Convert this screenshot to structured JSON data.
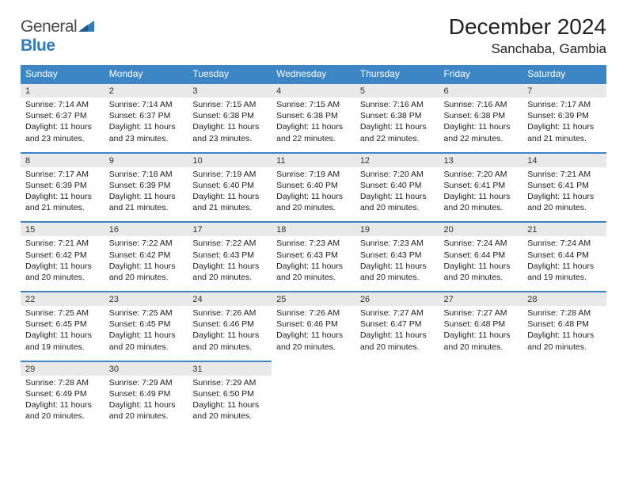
{
  "brand": {
    "text_gray": "General",
    "text_blue": "Blue"
  },
  "title": "December 2024",
  "location": "Sanchaba, Gambia",
  "colors": {
    "header_bg": "#3d86c6",
    "header_text": "#ffffff",
    "date_bg": "#e9e9e9",
    "divider": "#3d86c6",
    "brand_blue": "#2f7bbf",
    "text": "#222222",
    "background": "#ffffff"
  },
  "typography": {
    "title_fontsize": 28,
    "location_fontsize": 17,
    "dow_fontsize": 12,
    "cell_fontsize": 10.5
  },
  "dow": [
    "Sunday",
    "Monday",
    "Tuesday",
    "Wednesday",
    "Thursday",
    "Friday",
    "Saturday"
  ],
  "weeks": [
    [
      {
        "d": "1",
        "sr": "7:14 AM",
        "ss": "6:37 PM",
        "dl": "11 hours and 23 minutes."
      },
      {
        "d": "2",
        "sr": "7:14 AM",
        "ss": "6:37 PM",
        "dl": "11 hours and 23 minutes."
      },
      {
        "d": "3",
        "sr": "7:15 AM",
        "ss": "6:38 PM",
        "dl": "11 hours and 23 minutes."
      },
      {
        "d": "4",
        "sr": "7:15 AM",
        "ss": "6:38 PM",
        "dl": "11 hours and 22 minutes."
      },
      {
        "d": "5",
        "sr": "7:16 AM",
        "ss": "6:38 PM",
        "dl": "11 hours and 22 minutes."
      },
      {
        "d": "6",
        "sr": "7:16 AM",
        "ss": "6:38 PM",
        "dl": "11 hours and 22 minutes."
      },
      {
        "d": "7",
        "sr": "7:17 AM",
        "ss": "6:39 PM",
        "dl": "11 hours and 21 minutes."
      }
    ],
    [
      {
        "d": "8",
        "sr": "7:17 AM",
        "ss": "6:39 PM",
        "dl": "11 hours and 21 minutes."
      },
      {
        "d": "9",
        "sr": "7:18 AM",
        "ss": "6:39 PM",
        "dl": "11 hours and 21 minutes."
      },
      {
        "d": "10",
        "sr": "7:19 AM",
        "ss": "6:40 PM",
        "dl": "11 hours and 21 minutes."
      },
      {
        "d": "11",
        "sr": "7:19 AM",
        "ss": "6:40 PM",
        "dl": "11 hours and 20 minutes."
      },
      {
        "d": "12",
        "sr": "7:20 AM",
        "ss": "6:40 PM",
        "dl": "11 hours and 20 minutes."
      },
      {
        "d": "13",
        "sr": "7:20 AM",
        "ss": "6:41 PM",
        "dl": "11 hours and 20 minutes."
      },
      {
        "d": "14",
        "sr": "7:21 AM",
        "ss": "6:41 PM",
        "dl": "11 hours and 20 minutes."
      }
    ],
    [
      {
        "d": "15",
        "sr": "7:21 AM",
        "ss": "6:42 PM",
        "dl": "11 hours and 20 minutes."
      },
      {
        "d": "16",
        "sr": "7:22 AM",
        "ss": "6:42 PM",
        "dl": "11 hours and 20 minutes."
      },
      {
        "d": "17",
        "sr": "7:22 AM",
        "ss": "6:43 PM",
        "dl": "11 hours and 20 minutes."
      },
      {
        "d": "18",
        "sr": "7:23 AM",
        "ss": "6:43 PM",
        "dl": "11 hours and 20 minutes."
      },
      {
        "d": "19",
        "sr": "7:23 AM",
        "ss": "6:43 PM",
        "dl": "11 hours and 20 minutes."
      },
      {
        "d": "20",
        "sr": "7:24 AM",
        "ss": "6:44 PM",
        "dl": "11 hours and 20 minutes."
      },
      {
        "d": "21",
        "sr": "7:24 AM",
        "ss": "6:44 PM",
        "dl": "11 hours and 19 minutes."
      }
    ],
    [
      {
        "d": "22",
        "sr": "7:25 AM",
        "ss": "6:45 PM",
        "dl": "11 hours and 19 minutes."
      },
      {
        "d": "23",
        "sr": "7:25 AM",
        "ss": "6:45 PM",
        "dl": "11 hours and 20 minutes."
      },
      {
        "d": "24",
        "sr": "7:26 AM",
        "ss": "6:46 PM",
        "dl": "11 hours and 20 minutes."
      },
      {
        "d": "25",
        "sr": "7:26 AM",
        "ss": "6:46 PM",
        "dl": "11 hours and 20 minutes."
      },
      {
        "d": "26",
        "sr": "7:27 AM",
        "ss": "6:47 PM",
        "dl": "11 hours and 20 minutes."
      },
      {
        "d": "27",
        "sr": "7:27 AM",
        "ss": "6:48 PM",
        "dl": "11 hours and 20 minutes."
      },
      {
        "d": "28",
        "sr": "7:28 AM",
        "ss": "6:48 PM",
        "dl": "11 hours and 20 minutes."
      }
    ],
    [
      {
        "d": "29",
        "sr": "7:28 AM",
        "ss": "6:49 PM",
        "dl": "11 hours and 20 minutes."
      },
      {
        "d": "30",
        "sr": "7:29 AM",
        "ss": "6:49 PM",
        "dl": "11 hours and 20 minutes."
      },
      {
        "d": "31",
        "sr": "7:29 AM",
        "ss": "6:50 PM",
        "dl": "11 hours and 20 minutes."
      },
      null,
      null,
      null,
      null
    ]
  ],
  "labels": {
    "sunrise": "Sunrise:",
    "sunset": "Sunset:",
    "daylight": "Daylight:"
  }
}
